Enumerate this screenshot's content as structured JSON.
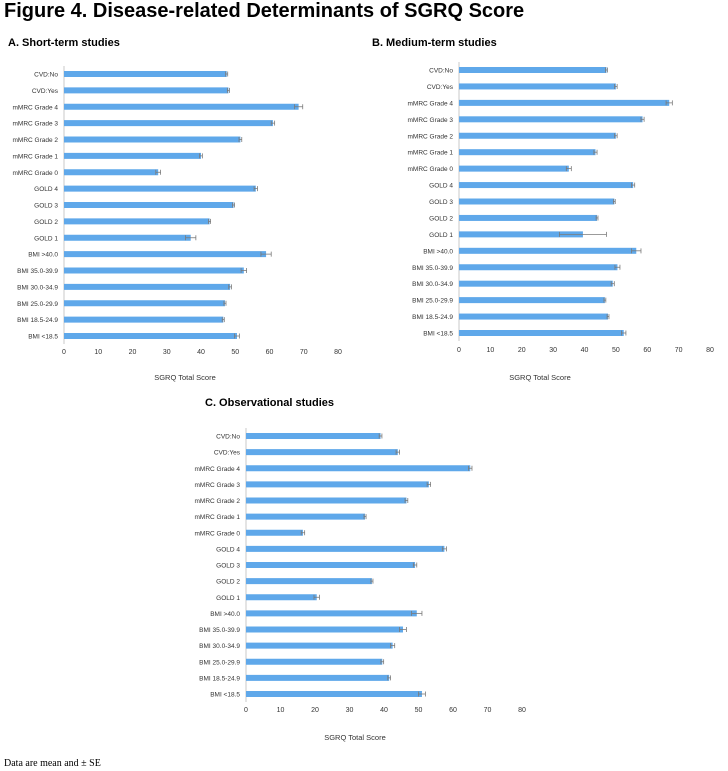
{
  "figure_title": "Figure 4. Disease-related Determinants of SGRQ Score",
  "footnote": "Data are mean and ± SE",
  "colors": {
    "bar": "#5fa8ea",
    "error": "#7a7a7a",
    "axis": "#c8c8c8",
    "text": "#333333"
  },
  "chart_data": [
    {
      "type": "bar",
      "orientation": "horizontal",
      "title": "A. Short-term studies",
      "xlabel": "SGRQ Total Score",
      "xlim": [
        0,
        80
      ],
      "xticks": [
        0,
        10,
        20,
        30,
        40,
        50,
        60,
        70,
        80
      ],
      "categories": [
        "CVD:No",
        "CVD:Yes",
        "mMRC Grade 4",
        "mMRC Grade 3",
        "mMRC Grade 2",
        "mMRC Grade 1",
        "mMRC Grade 0",
        "GOLD 4",
        "GOLD 3",
        "GOLD 2",
        "GOLD 1",
        "BMI >40.0",
        "BMI 35.0-39.9",
        "BMI 30.0-34.9",
        "BMI 25.0-29.9",
        "BMI 18.5-24.9",
        "BMI <18.5"
      ],
      "values": [
        47.5,
        48,
        68.5,
        61,
        51.5,
        40,
        27.5,
        56,
        49.5,
        42.5,
        37,
        59,
        52.5,
        48.5,
        47,
        46.5,
        50.5
      ],
      "errors": [
        0.3,
        0.3,
        1.2,
        0.5,
        0.4,
        0.4,
        0.7,
        0.5,
        0.3,
        0.3,
        1.5,
        1.5,
        0.8,
        0.4,
        0.3,
        0.3,
        0.7
      ]
    },
    {
      "type": "bar",
      "orientation": "horizontal",
      "title": "B. Medium-term studies",
      "xlabel": "SGRQ Total Score",
      "xlim": [
        0,
        80
      ],
      "xticks": [
        0,
        10,
        20,
        30,
        40,
        50,
        60,
        70,
        80
      ],
      "categories": [
        "CVD:No",
        "CVD:Yes",
        "mMRC Grade 4",
        "mMRC Grade 3",
        "mMRC Grade 2",
        "mMRC Grade 1",
        "mMRC Grade 0",
        "GOLD 4",
        "GOLD 3",
        "GOLD 2",
        "GOLD 1",
        "BMI >40.0",
        "BMI 35.0-39.9",
        "BMI 30.0-34.9",
        "BMI 25.0-29.9",
        "BMI 18.5-24.9",
        "BMI <18.5"
      ],
      "values": [
        47,
        50,
        67,
        58.5,
        50,
        43.5,
        35,
        55.5,
        49.5,
        44,
        39.5,
        56.5,
        50.5,
        49,
        46.5,
        47.5,
        52.5
      ],
      "errors": [
        0.3,
        0.4,
        1.0,
        0.5,
        0.4,
        0.5,
        0.8,
        0.5,
        0.3,
        0.3,
        7.5,
        1.5,
        0.8,
        0.5,
        0.3,
        0.3,
        0.7
      ]
    },
    {
      "type": "bar",
      "orientation": "horizontal",
      "title": "C. Observational studies",
      "xlabel": "SGRQ Total Score",
      "xlim": [
        0,
        80
      ],
      "xticks": [
        0,
        10,
        20,
        30,
        40,
        50,
        60,
        70,
        80
      ],
      "categories": [
        "CVD:No",
        "CVD:Yes",
        "mMRC Grade 4",
        "mMRC Grade 3",
        "mMRC Grade 2",
        "mMRC Grade 1",
        "mMRC Grade 0",
        "GOLD 4",
        "GOLD 3",
        "GOLD 2",
        "GOLD 1",
        "BMI >40.0",
        "BMI 35.0-39.9",
        "BMI 30.0-34.9",
        "BMI 25.0-29.9",
        "BMI 18.5-24.9",
        "BMI <18.5"
      ],
      "values": [
        39,
        44,
        65,
        53,
        46.5,
        34.5,
        16.5,
        57.5,
        49,
        36.5,
        20.5,
        49.5,
        45.5,
        42.5,
        39.5,
        41.5,
        51
      ],
      "errors": [
        0.4,
        0.5,
        0.5,
        0.5,
        0.4,
        0.3,
        0.5,
        0.6,
        0.5,
        0.3,
        0.8,
        1.5,
        1.0,
        0.6,
        0.4,
        0.4,
        1.0
      ]
    }
  ]
}
